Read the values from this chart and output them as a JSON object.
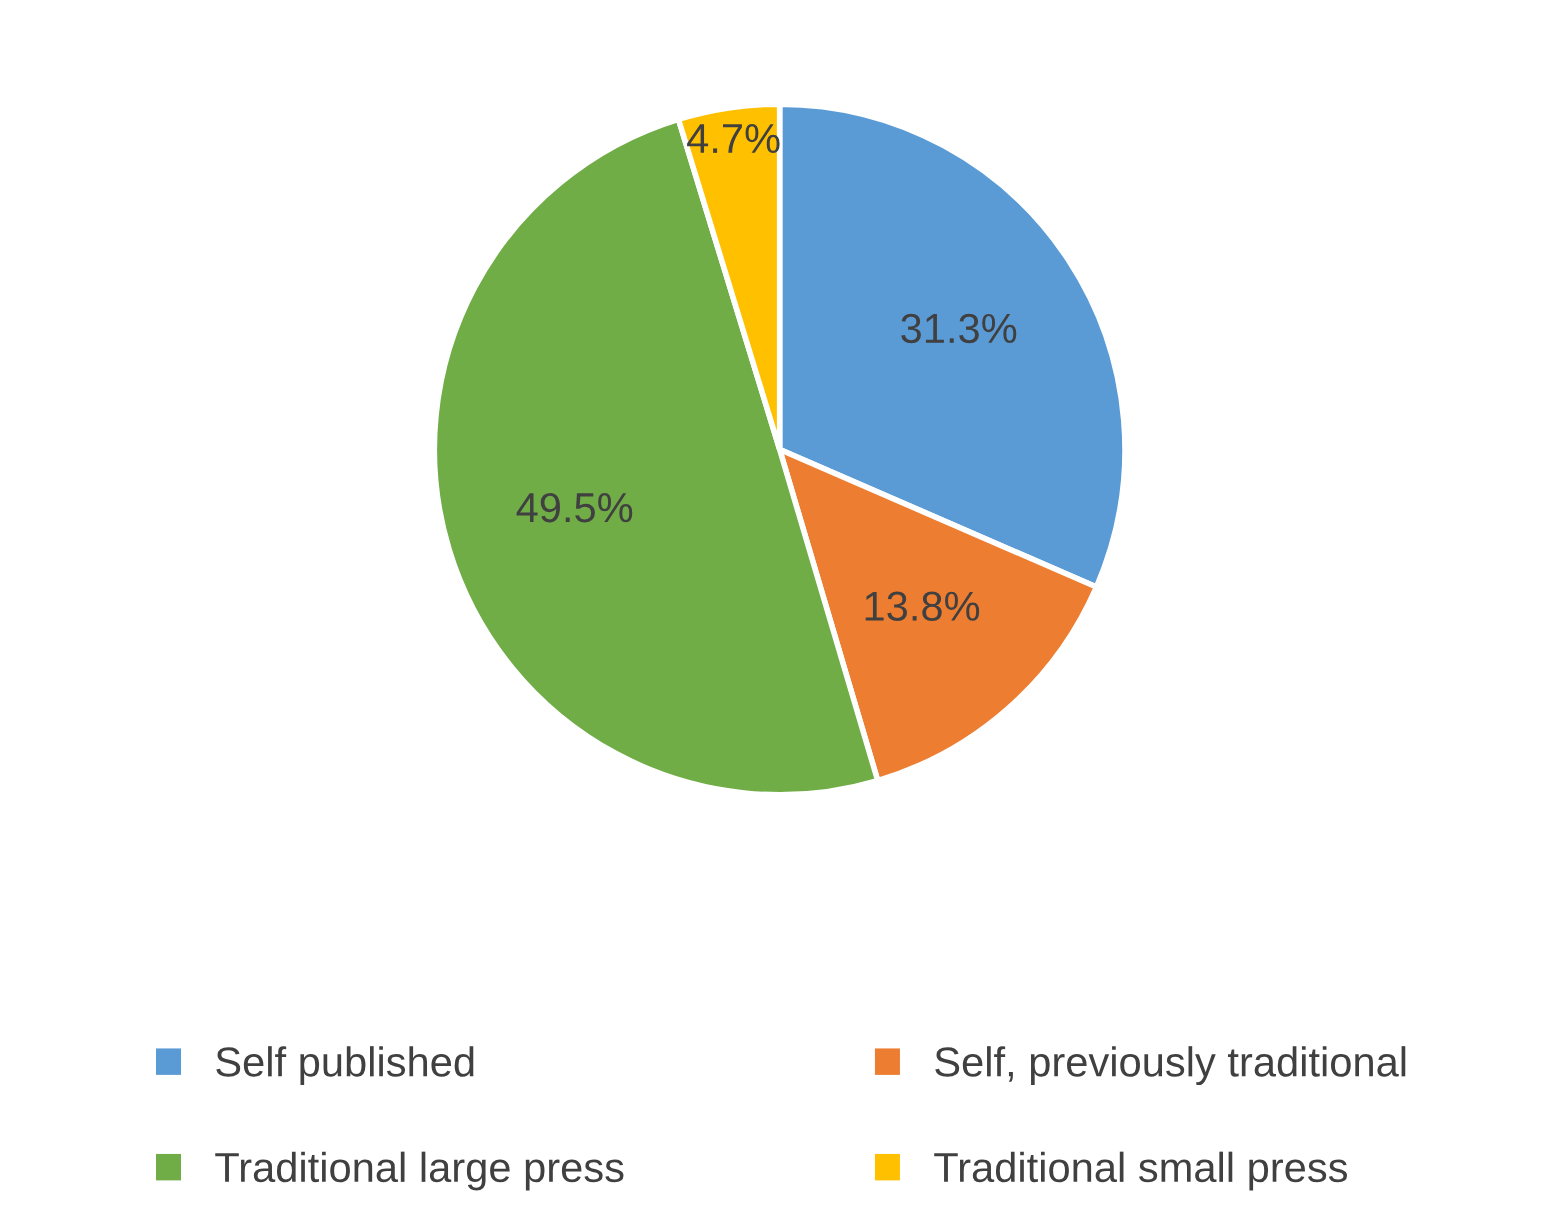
{
  "chart_data": {
    "type": "pie",
    "categories": [
      "Self published",
      "Self, previously traditional",
      "Traditional large press",
      "Traditional small press"
    ],
    "values": [
      31.3,
      13.8,
      49.5,
      4.7
    ],
    "colors": [
      "#5b9bd5",
      "#ed7d31",
      "#70ad47",
      "#ffc000"
    ],
    "value_labels": [
      "31.3%",
      "13.8%",
      "49.5%",
      "4.7%"
    ],
    "legend": "bottom"
  }
}
